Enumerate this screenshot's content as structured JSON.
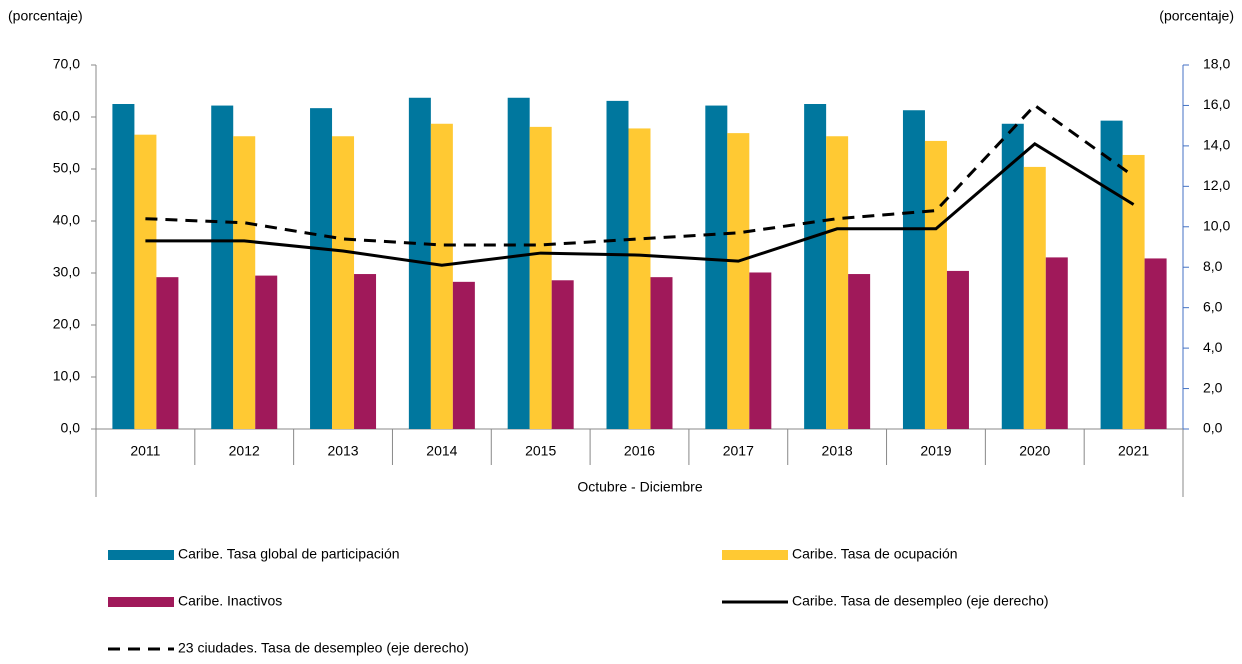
{
  "chart_data": {
    "type": "bar",
    "y_label": "(porcentaje)",
    "y2_label": "(porcentaje)",
    "x_label": "Octubre - Diciembre",
    "categories": [
      "2011",
      "2012",
      "2013",
      "2014",
      "2015",
      "2016",
      "2017",
      "2018",
      "2019",
      "2020",
      "2021"
    ],
    "ylim": [
      0,
      70
    ],
    "yticks": [
      {
        "value": 0,
        "label": "0,0"
      },
      {
        "value": 10,
        "label": "10,0"
      },
      {
        "value": 20,
        "label": "20,0"
      },
      {
        "value": 30,
        "label": "30,0"
      },
      {
        "value": 40,
        "label": "40,0"
      },
      {
        "value": 50,
        "label": "50,0"
      },
      {
        "value": 60,
        "label": "60,0"
      },
      {
        "value": 70,
        "label": "70,0"
      }
    ],
    "y2lim": [
      0,
      18
    ],
    "y2ticks": [
      {
        "value": 0,
        "label": "0,0"
      },
      {
        "value": 2,
        "label": "2,0"
      },
      {
        "value": 4,
        "label": "4,0"
      },
      {
        "value": 6,
        "label": "6,0"
      },
      {
        "value": 8,
        "label": "8,0"
      },
      {
        "value": 10,
        "label": "10,0"
      },
      {
        "value": 12,
        "label": "12,0"
      },
      {
        "value": 14,
        "label": "14,0"
      },
      {
        "value": 16,
        "label": "16,0"
      },
      {
        "value": 18,
        "label": "18,0"
      }
    ],
    "series": [
      {
        "name": "Caribe. Tasa global de participación",
        "type": "bar",
        "color": "#00779e",
        "values": [
          62.5,
          62.2,
          61.7,
          63.7,
          63.7,
          63.1,
          62.2,
          62.5,
          61.3,
          58.7,
          59.3
        ]
      },
      {
        "name": "Caribe. Tasa de ocupación",
        "type": "bar",
        "color": "#ffc933",
        "values": [
          56.6,
          56.3,
          56.3,
          58.7,
          58.1,
          57.8,
          56.9,
          56.3,
          55.4,
          50.4,
          52.7
        ]
      },
      {
        "name": "Caribe. Inactivos",
        "type": "bar",
        "color": "#a0195a",
        "values": [
          29.2,
          29.5,
          29.8,
          28.3,
          28.6,
          29.2,
          30.1,
          29.8,
          30.4,
          33.0,
          32.8
        ]
      },
      {
        "name": "Caribe. Tasa de desempleo (eje derecho)",
        "type": "line",
        "axis": "y2",
        "color": "#000000",
        "dashed": false,
        "values": [
          9.3,
          9.3,
          8.8,
          8.1,
          8.7,
          8.6,
          8.3,
          9.9,
          9.9,
          14.1,
          11.1
        ]
      },
      {
        "name": "23 ciudades. Tasa de desempleo (eje derecho)",
        "type": "line",
        "axis": "y2",
        "color": "#000000",
        "dashed": true,
        "values": [
          10.4,
          10.2,
          9.4,
          9.1,
          9.1,
          9.4,
          9.7,
          10.4,
          10.8,
          16.0,
          12.5
        ]
      }
    ]
  }
}
